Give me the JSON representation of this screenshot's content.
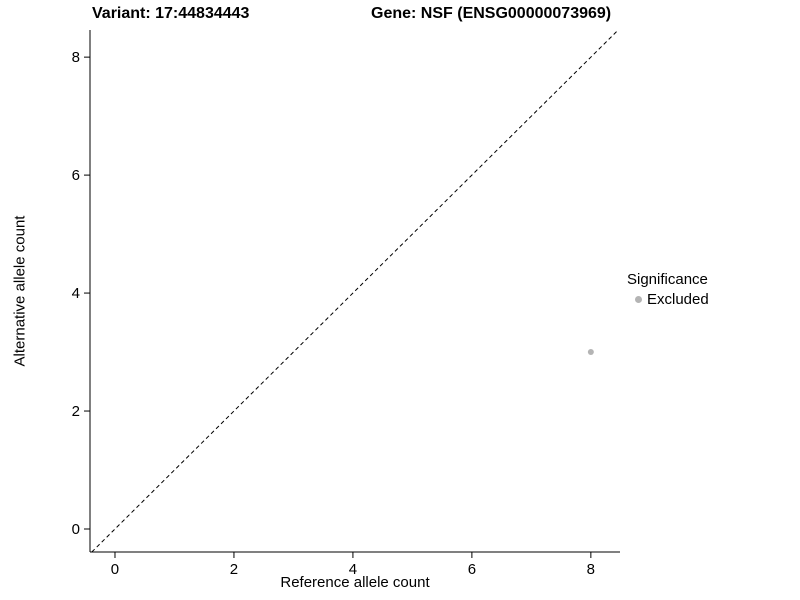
{
  "chart_data": {
    "type": "scatter",
    "title_left": "Variant: 17:44834443",
    "title_right": "Gene: NSF (ENSG00000073969)",
    "xlabel": "Reference allele count",
    "ylabel": "Alternative allele count",
    "xlim": [
      -0.42,
      8.49
    ],
    "ylim": [
      -0.39,
      8.46
    ],
    "xticks": [
      0,
      2,
      4,
      6,
      8
    ],
    "yticks": [
      0,
      2,
      4,
      6,
      8
    ],
    "grid": false,
    "axis_color": "#000000",
    "text_color": "#000000",
    "identity_line": {
      "type": "abline",
      "slope": 1,
      "intercept": 0,
      "style": "dashed",
      "color": "#000000"
    },
    "series": [
      {
        "name": "Excluded",
        "color": "#b4b4b4",
        "marker": "circle",
        "points": [
          {
            "x": 8,
            "y": 3
          }
        ]
      }
    ],
    "legend": {
      "position": "right",
      "title": "Significance",
      "items": [
        {
          "label": "Excluded",
          "color": "#b4b4b4"
        }
      ]
    }
  }
}
